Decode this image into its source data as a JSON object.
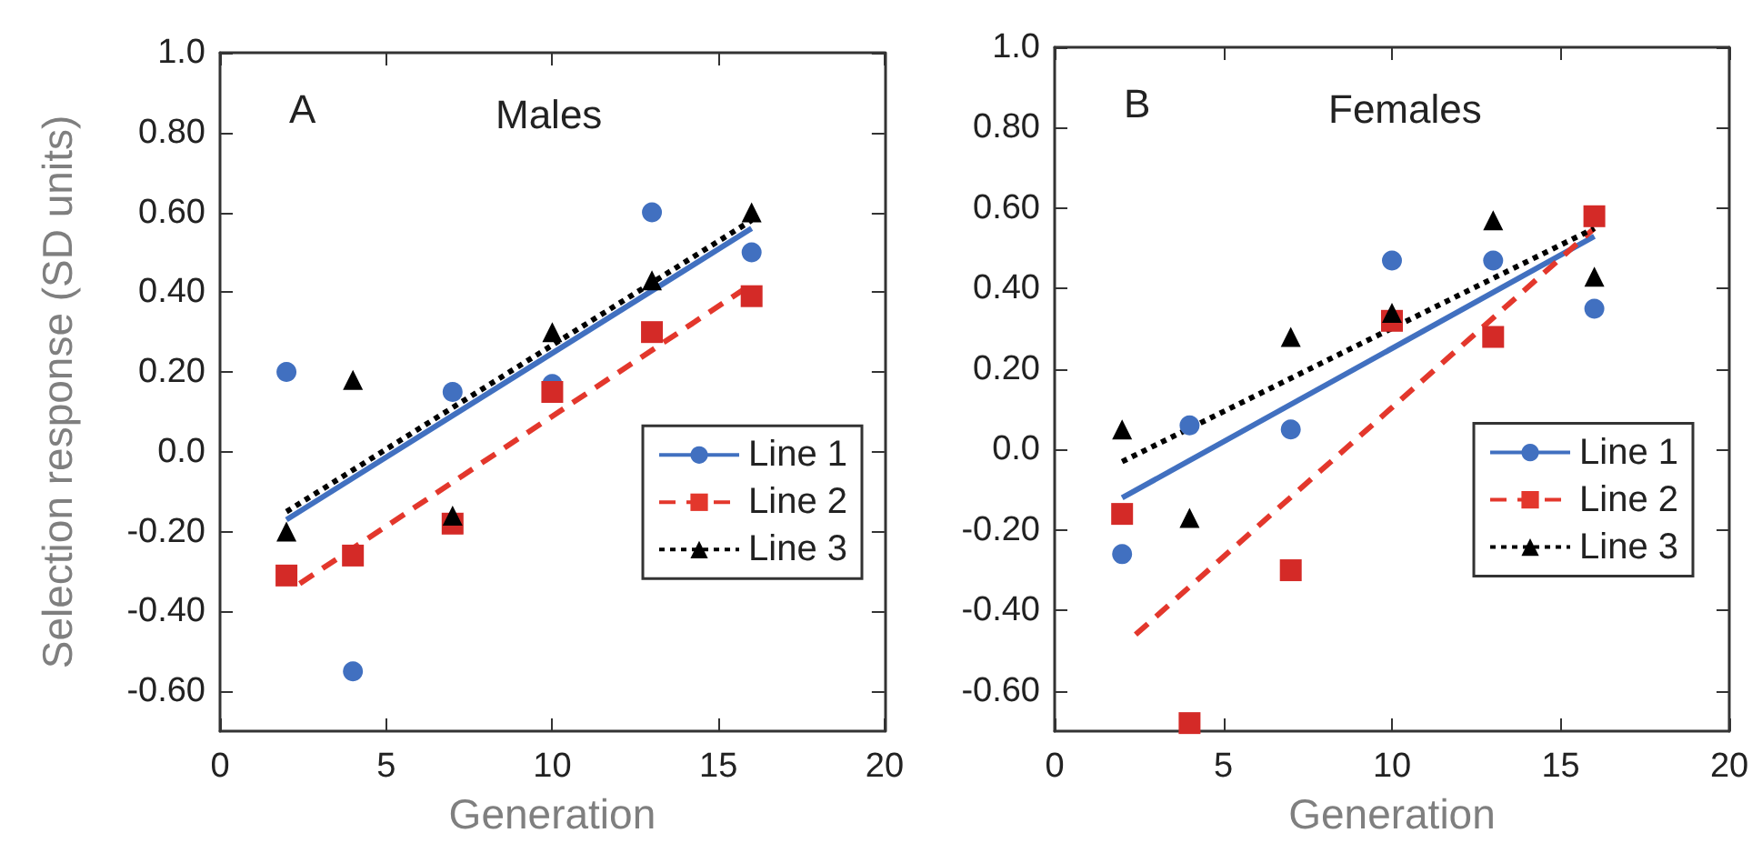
{
  "chart_data": [
    {
      "type": "scatter",
      "title": "Males",
      "ylabel": "Selection response (SD units)",
      "xlabel": "Generation",
      "annotations": [
        "A"
      ],
      "xlim": [
        0,
        20
      ],
      "xticks": [
        0,
        5,
        10,
        15,
        20
      ],
      "ylim": [
        -0.7,
        1.0
      ],
      "yticks": [
        {
          "value": -0.6,
          "label": "-0.60"
        },
        {
          "value": -0.4,
          "label": "-0.40"
        },
        {
          "value": -0.2,
          "label": "-0.20"
        },
        {
          "value": 0,
          "label": "0.0"
        },
        {
          "value": 0.2,
          "label": "0.20"
        },
        {
          "value": 0.4,
          "label": "0.40"
        },
        {
          "value": 0.6,
          "label": "0.60"
        },
        {
          "value": 0.8,
          "label": "0.80"
        },
        {
          "value": 1.0,
          "label": "1.0"
        }
      ],
      "grid": false,
      "legend": "right",
      "series": [
        {
          "name": "Line 1",
          "marker": "circle",
          "color": "#4170c0",
          "x": [
            2,
            4,
            7,
            10,
            13,
            16
          ],
          "values": [
            0.2,
            -0.55,
            0.15,
            0.17,
            0.6,
            0.5
          ]
        },
        {
          "type": "line",
          "line_style": "solid",
          "color": "#4170c0",
          "x": [
            2,
            16
          ],
          "values": [
            -0.17,
            0.56
          ]
        },
        {
          "name": "Line 2",
          "marker": "square",
          "color": "#d42a27",
          "x": [
            2,
            4,
            7,
            10,
            13,
            16
          ],
          "values": [
            -0.31,
            -0.26,
            -0.18,
            0.15,
            0.3,
            0.39
          ]
        },
        {
          "type": "line",
          "line_style": "dashed",
          "color": "#e3372c",
          "x": [
            2.4,
            16
          ],
          "values": [
            -0.33,
            0.42
          ]
        },
        {
          "name": "Line 3",
          "marker": "triangle",
          "color": "#000000",
          "x": [
            2,
            4,
            7,
            10,
            13,
            16
          ],
          "values": [
            -0.2,
            0.18,
            -0.16,
            0.3,
            0.43,
            0.6
          ]
        },
        {
          "type": "line",
          "line_style": "dotted",
          "color": "#000000",
          "x": [
            2,
            16
          ],
          "values": [
            -0.15,
            0.58
          ]
        }
      ]
    },
    {
      "type": "scatter",
      "title": "Females",
      "xlabel": "Generation",
      "annotations": [
        "B"
      ],
      "xlim": [
        0,
        20
      ],
      "xticks": [
        0,
        5,
        10,
        15,
        20
      ],
      "ylim": [
        -0.7,
        1.0
      ],
      "yticks": [
        {
          "value": -0.6,
          "label": "-0.60"
        },
        {
          "value": -0.4,
          "label": "-0.40"
        },
        {
          "value": -0.2,
          "label": "-0.20"
        },
        {
          "value": 0,
          "label": "0.0"
        },
        {
          "value": 0.2,
          "label": "0.20"
        },
        {
          "value": 0.4,
          "label": "0.40"
        },
        {
          "value": 0.6,
          "label": "0.60"
        },
        {
          "value": 0.8,
          "label": "0.80"
        },
        {
          "value": 1.0,
          "label": "1.0"
        }
      ],
      "grid": false,
      "legend": "right",
      "series": [
        {
          "name": "Line 1",
          "marker": "circle",
          "color": "#4170c0",
          "x": [
            2,
            4,
            7,
            10,
            13,
            16
          ],
          "values": [
            -0.26,
            0.06,
            0.05,
            0.47,
            0.47,
            0.35
          ]
        },
        {
          "type": "line",
          "line_style": "solid",
          "color": "#4170c0",
          "x": [
            2,
            16
          ],
          "values": [
            -0.12,
            0.53
          ]
        },
        {
          "name": "Line 2",
          "marker": "square",
          "color": "#d42a27",
          "x": [
            2,
            4,
            7,
            10,
            13,
            16
          ],
          "values": [
            -0.16,
            -0.68,
            -0.3,
            0.32,
            0.28,
            0.58
          ]
        },
        {
          "type": "line",
          "line_style": "dashed",
          "color": "#e3372c",
          "x": [
            2.4,
            16
          ],
          "values": [
            -0.46,
            0.55
          ]
        },
        {
          "name": "Line 3",
          "marker": "triangle",
          "color": "#000000",
          "x": [
            2,
            4,
            7,
            10,
            13,
            16
          ],
          "values": [
            0.05,
            -0.17,
            0.28,
            0.34,
            0.57,
            0.43
          ]
        },
        {
          "type": "line",
          "line_style": "dotted",
          "color": "#000000",
          "x": [
            2,
            16
          ],
          "values": [
            -0.03,
            0.55
          ]
        }
      ]
    }
  ]
}
